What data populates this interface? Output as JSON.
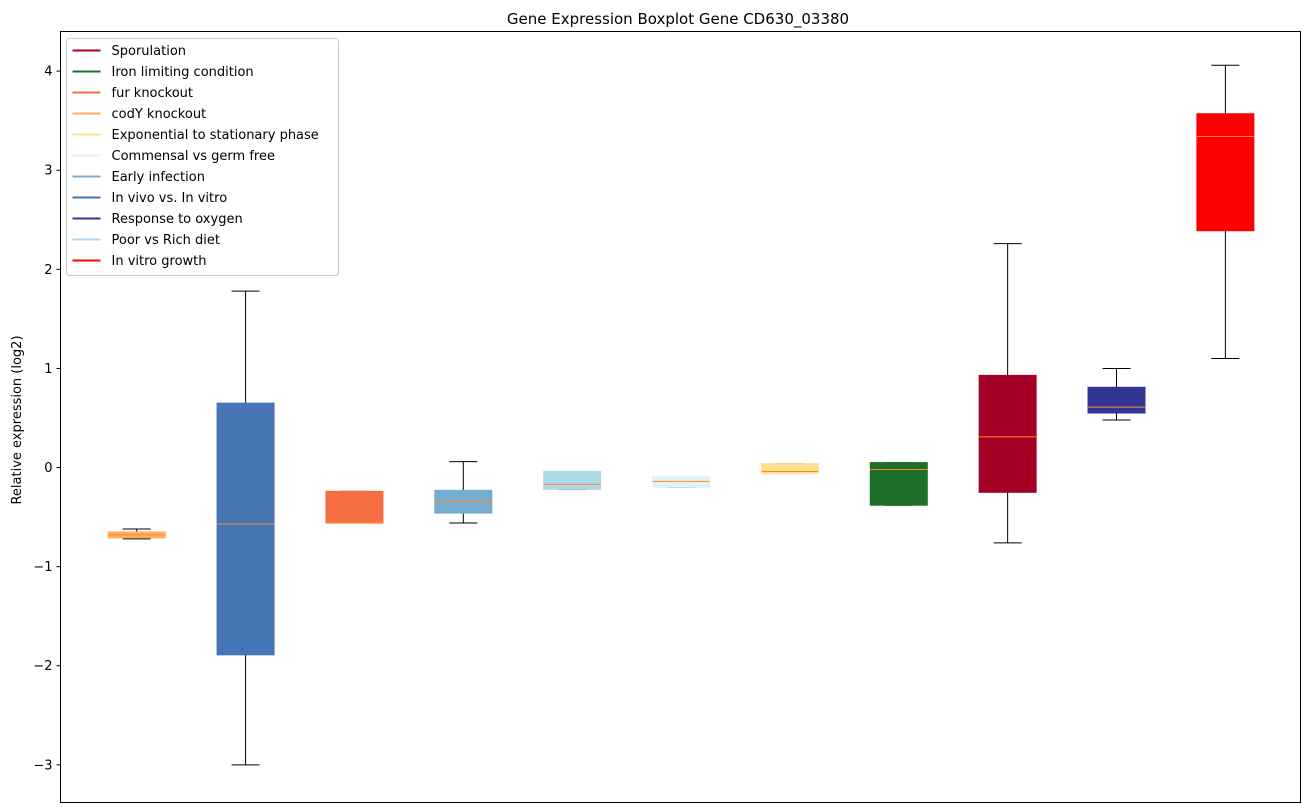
{
  "chart_data": {
    "type": "boxplot",
    "title": "Gene Expression Boxplot Gene CD630_03380",
    "ylabel": "Relative expression (log2)",
    "xlabel": "",
    "ylim": [
      -3.38,
      4.4
    ],
    "yticks": [
      -3,
      -2,
      -1,
      0,
      1,
      2,
      3,
      4
    ],
    "ytick_labels": [
      "−3",
      "−2",
      "−1",
      "0",
      "1",
      "2",
      "3",
      "4"
    ],
    "grid": false,
    "legend_placement": "top-left",
    "median_color": "#ff8c1a",
    "legend": [
      {
        "label": "Sporulation",
        "color": "#a50026"
      },
      {
        "label": "Iron limiting condition",
        "color": "#1f6f2c"
      },
      {
        "label": "fur knockout",
        "color": "#f46d43"
      },
      {
        "label": "codY knockout",
        "color": "#fdae61"
      },
      {
        "label": "Exponential to stationary phase",
        "color": "#fee090"
      },
      {
        "label": "Commensal vs germ free",
        "color": "#e0f3f8"
      },
      {
        "label": "Early infection",
        "color": "#74add1"
      },
      {
        "label": "In vivo vs. In vitro",
        "color": "#4575b4"
      },
      {
        "label": "Response to oxygen",
        "color": "#313695"
      },
      {
        "label": "Poor vs Rich diet",
        "color": "#abd9e9"
      },
      {
        "label": "In vitro growth",
        "color": "#ff0000"
      }
    ],
    "boxes": [
      {
        "color": "#fdae61",
        "whislo": -0.72,
        "q1": -0.71,
        "med": -0.68,
        "q3": -0.65,
        "whishi": -0.62
      },
      {
        "color": "#4575b4",
        "whislo": -3.0,
        "q1": -1.89,
        "med": -0.57,
        "q3": 0.65,
        "whishi": 1.78
      },
      {
        "color": "#f46d43",
        "whislo": -0.56,
        "q1": -0.56,
        "med": -0.55,
        "q3": -0.24,
        "whishi": -0.24
      },
      {
        "color": "#74add1",
        "whislo": -0.56,
        "q1": -0.46,
        "med": -0.34,
        "q3": -0.23,
        "whishi": 0.06
      },
      {
        "color": "#abd9e9",
        "whislo": -0.22,
        "q1": -0.22,
        "med": -0.17,
        "q3": -0.04,
        "whishi": -0.04
      },
      {
        "color": "#e0f3f8",
        "whislo": -0.2,
        "q1": -0.2,
        "med": -0.14,
        "q3": -0.09,
        "whishi": -0.09
      },
      {
        "color": "#fee090",
        "whislo": -0.06,
        "q1": -0.06,
        "med": -0.04,
        "q3": 0.04,
        "whishi": 0.04
      },
      {
        "color": "#1f6f2c",
        "whislo": -0.38,
        "q1": -0.38,
        "med": -0.02,
        "q3": 0.05,
        "whishi": 0.05
      },
      {
        "color": "#a50026",
        "whislo": -0.76,
        "q1": -0.25,
        "med": 0.31,
        "q3": 0.93,
        "whishi": 2.26
      },
      {
        "color": "#313695",
        "whislo": 0.48,
        "q1": 0.55,
        "med": 0.61,
        "q3": 0.81,
        "whishi": 1.0
      },
      {
        "color": "#ff0000",
        "whislo": 1.1,
        "q1": 2.39,
        "med": 3.34,
        "q3": 3.57,
        "whishi": 4.06
      }
    ]
  }
}
